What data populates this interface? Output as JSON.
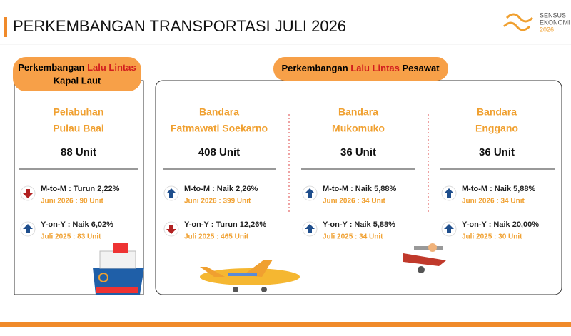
{
  "header": {
    "title": "PERKEMBANGAN TRANSPORTASI JULI 2026",
    "logo": [
      "SENSUS",
      "EKONOMI",
      "2026"
    ]
  },
  "sea": {
    "label": {
      "before": "Perkembangan ",
      "highlight": "Lalu Lintas",
      "after": "Kapal Laut"
    },
    "stations": [
      {
        "name": [
          "Pelabuhan",
          "Pulau Baai"
        ],
        "value": "88 Unit",
        "mtm": "M-to-M : Turun 2,22%",
        "mtm_detail": "Juni 2026 : 90 Unit",
        "mtm_trend": "down",
        "yoy": "Y-on-Y : Naik 6,02%",
        "yoy_detail": "Juli 2025 : 83 Unit",
        "yoy_trend": "up"
      }
    ]
  },
  "air": {
    "label": {
      "before": "Perkembangan ",
      "highlight": "Lalu Lintas",
      "after": " Pesawat"
    },
    "stations": [
      {
        "name": [
          "Bandara",
          "Fatmawati Soekarno"
        ],
        "value": "408 Unit",
        "mtm": "M-to-M : Naik 2,26%",
        "mtm_detail": "Juni 2026 : 399 Unit",
        "mtm_trend": "up",
        "yoy": "Y-on-Y : Turun 12,26%",
        "yoy_detail": "Juli 2025 : 465 Unit",
        "yoy_trend": "down"
      },
      {
        "name": [
          "Bandara",
          "Mukomuko"
        ],
        "value": "36 Unit",
        "mtm": "M-to-M : Naik 5,88%",
        "mtm_detail": "Juni 2026 : 34 Unit",
        "mtm_trend": "up",
        "yoy": "Y-on-Y : Naik 5,88%",
        "yoy_detail": "Juli 2025 : 34 Unit",
        "yoy_trend": "up"
      },
      {
        "name": [
          "Bandara",
          "Enggano"
        ],
        "value": "36 Unit",
        "mtm": "M-to-M : Naik 5,88%",
        "mtm_detail": "Juni 2026 : 34 Unit",
        "mtm_trend": "up",
        "yoy": "Y-on-Y : Naik 20,00%",
        "yoy_detail": "Juli 2025 : 30 Unit",
        "yoy_trend": "up"
      }
    ]
  }
}
